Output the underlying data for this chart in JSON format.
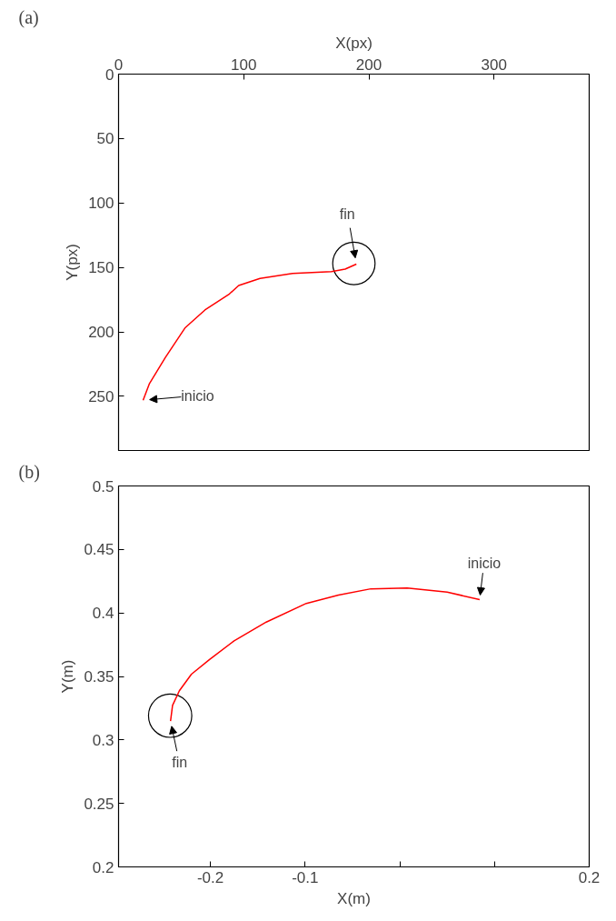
{
  "chart_data": [
    {
      "type": "line",
      "title": "(a)",
      "xlabel": "X(px)",
      "ylabel": "Y(px)",
      "xlim": [
        0,
        376
      ],
      "ylim": [
        292,
        0
      ],
      "xticks": [
        0,
        100,
        200,
        300
      ],
      "yticks": [
        0,
        50,
        100,
        150,
        200,
        250
      ],
      "grid": false,
      "marker": "none",
      "line_style": "solid",
      "series": [
        {
          "color": "#ff0000",
          "x": [
            19.6,
            24.7,
            37.3,
            53,
            69,
            88,
            96,
            113,
            139,
            170,
            181,
            190
          ],
          "values": [
            253,
            240,
            220,
            197,
            183,
            171,
            164,
            158.5,
            154.6,
            153.3,
            151.3,
            147.4
          ]
        }
      ],
      "annotations": [
        {
          "text": "fin",
          "x": 190,
          "y": 147.4
        },
        {
          "text": "inicio",
          "x": 19.6,
          "y": 253
        }
      ]
    },
    {
      "type": "line",
      "title": "(b)",
      "xlabel": "X(m)",
      "ylabel": "Y(m)",
      "xlim": [
        -0.297,
        0.2
      ],
      "ylim": [
        0.2,
        0.5
      ],
      "xticks": [
        -0.2,
        -0.1,
        {
          "value": 0,
          "label": null
        },
        {
          "value": 0.1,
          "label": null
        },
        0.2
      ],
      "yticks": [
        0.2,
        0.25,
        0.3,
        0.35,
        0.4,
        0.45,
        0.5
      ],
      "grid": false,
      "marker": "none",
      "line_style": "solid",
      "series": [
        {
          "color": "#ff0000",
          "x": [
            0.0843,
            0.05,
            0.0077,
            -0.0306,
            -0.0647,
            -0.0987,
            -0.141,
            -0.175,
            -0.2009,
            -0.22,
            -0.2328,
            -0.24,
            -0.2421
          ],
          "values": [
            0.4105,
            0.4164,
            0.4197,
            0.419,
            0.4141,
            0.4075,
            0.3928,
            0.378,
            0.3633,
            0.3518,
            0.3387,
            0.3272,
            0.3148
          ]
        }
      ],
      "annotations": [
        {
          "text": "inicio",
          "x": 0.0843,
          "y": 0.4105
        },
        {
          "text": "fin",
          "x": -0.2421,
          "y": 0.3148
        }
      ]
    }
  ]
}
